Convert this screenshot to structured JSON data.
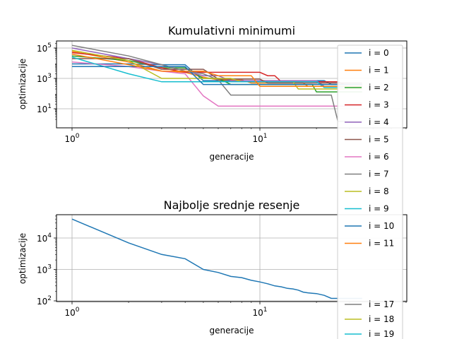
{
  "chart_data": [
    {
      "type": "line",
      "title": "Kumulativni minimumi",
      "xlabel": "generacije",
      "ylabel": "optimizacije",
      "xscale": "log",
      "yscale": "log",
      "grid": true,
      "legend_position": "right",
      "x": [
        1,
        2,
        3,
        4,
        5,
        6,
        7,
        8,
        9,
        10,
        11,
        12,
        13,
        14,
        15,
        16,
        17,
        18,
        19,
        20,
        22,
        24,
        26,
        28,
        30,
        32,
        35
      ],
      "x_ticks": [
        "10^0",
        "10^1"
      ],
      "y_ticks": [
        "10^1",
        "10^3",
        "10^5"
      ],
      "series": [
        {
          "name": "i = 0",
          "color": "#1f77b4",
          "values": [
            9000,
            9000,
            8000,
            8000,
            700,
            700,
            700,
            700,
            700,
            700,
            700,
            700,
            700,
            700,
            700,
            700,
            700,
            700,
            700,
            700,
            700,
            400,
            400,
            400,
            400,
            400,
            400
          ]
        },
        {
          "name": "i = 1",
          "color": "#ff7f0e",
          "values": [
            60000,
            12000,
            3000,
            2500,
            1200,
            800,
            800,
            800,
            500,
            500,
            500,
            500,
            500,
            500,
            500,
            500,
            500,
            300,
            300,
            300,
            300,
            300,
            300,
            300,
            300,
            300,
            300
          ]
        },
        {
          "name": "i = 2",
          "color": "#2ca02c",
          "values": [
            30000,
            15000,
            5000,
            5000,
            1000,
            1000,
            400,
            400,
            400,
            400,
            400,
            400,
            400,
            400,
            400,
            400,
            400,
            400,
            400,
            130,
            130,
            130,
            130,
            130,
            130,
            130,
            130
          ]
        },
        {
          "name": "i = 3",
          "color": "#d62728",
          "values": [
            50000,
            20000,
            5000,
            2500,
            2500,
            2500,
            2500,
            2500,
            2500,
            2500,
            1500,
            1500,
            600,
            600,
            600,
            600,
            600,
            600,
            600,
            600,
            600,
            600,
            600,
            400,
            400,
            400,
            400
          ]
        },
        {
          "name": "i = 4",
          "color": "#9467bd",
          "values": [
            100000,
            20000,
            8000,
            3000,
            1500,
            1500,
            700,
            700,
            700,
            700,
            700,
            700,
            700,
            700,
            700,
            700,
            700,
            700,
            700,
            700,
            300,
            300,
            300,
            300,
            300,
            300,
            300
          ]
        },
        {
          "name": "i = 5",
          "color": "#8c564b",
          "values": [
            20000,
            20000,
            4000,
            4000,
            4000,
            900,
            900,
            900,
            900,
            900,
            500,
            500,
            500,
            500,
            500,
            500,
            500,
            500,
            500,
            500,
            500,
            500,
            500,
            500,
            500,
            500,
            500
          ]
        },
        {
          "name": "i = 6",
          "color": "#e377c2",
          "values": [
            12000,
            6000,
            3000,
            2000,
            70,
            15,
            15,
            15,
            15,
            15,
            15,
            15,
            15,
            15,
            15,
            15,
            15,
            15,
            15,
            15,
            15,
            15,
            15,
            15,
            15,
            15,
            15
          ]
        },
        {
          "name": "i = 7",
          "color": "#7f7f7f",
          "values": [
            150000,
            30000,
            8000,
            3000,
            2000,
            800,
            80,
            80,
            80,
            80,
            80,
            80,
            80,
            80,
            80,
            80,
            80,
            80,
            80,
            80,
            80,
            80,
            1,
            1,
            1,
            1,
            1
          ]
        },
        {
          "name": "i = 8",
          "color": "#bcbd22",
          "values": [
            70000,
            15000,
            1000,
            1000,
            1000,
            1000,
            1000,
            600,
            600,
            600,
            600,
            600,
            600,
            600,
            600,
            200,
            200,
            200,
            200,
            200,
            200,
            200,
            200,
            200,
            200,
            200,
            200
          ]
        },
        {
          "name": "i = 9",
          "color": "#17becf",
          "values": [
            25000,
            2000,
            600,
            600,
            600,
            600,
            600,
            600,
            600,
            600,
            600,
            600,
            600,
            600,
            600,
            600,
            600,
            600,
            600,
            600,
            250,
            250,
            250,
            250,
            250,
            250,
            250
          ]
        },
        {
          "name": "i = 10",
          "color": "#1f77b4",
          "values": [
            6000,
            6000,
            6000,
            6000,
            400,
            400,
            400,
            400,
            400,
            400,
            400,
            400,
            400,
            400,
            400,
            400,
            400,
            400,
            400,
            400,
            400,
            400,
            400,
            400,
            400,
            400,
            400
          ]
        },
        {
          "name": "i = 11",
          "color": "#ff7f0e",
          "values": [
            40000,
            8000,
            3000,
            3000,
            3000,
            1500,
            1500,
            1500,
            1500,
            300,
            300,
            300,
            300,
            300,
            300,
            300,
            300,
            300,
            300,
            300,
            300,
            300,
            300,
            300,
            300,
            300,
            300
          ]
        }
      ]
    },
    {
      "type": "line",
      "title": "Najbolje srednje resenje",
      "xlabel": "generacije",
      "ylabel": "optimizacije",
      "xscale": "log",
      "yscale": "log",
      "grid": true,
      "legend_position": "right",
      "x_ticks": [
        "10^0",
        "10^1"
      ],
      "y_ticks": [
        "10^2",
        "10^3",
        "10^4"
      ],
      "series": [
        {
          "color": "#1f77b4",
          "x": [
            1,
            2,
            3,
            4,
            5,
            6,
            7,
            8,
            9,
            10,
            11,
            12,
            13,
            14,
            15,
            16,
            17,
            18,
            19,
            20,
            22,
            24,
            26,
            28,
            30,
            35
          ],
          "values": [
            40000,
            7000,
            3000,
            2200,
            1000,
            800,
            600,
            550,
            450,
            400,
            350,
            300,
            280,
            250,
            240,
            220,
            190,
            180,
            175,
            170,
            150,
            120,
            120,
            120,
            120,
            120
          ]
        }
      ],
      "legend_visible": [
        "i = 17",
        "i = 18",
        "i = 19"
      ],
      "legend_visible_colors": [
        "#7f7f7f",
        "#bcbd22",
        "#17becf"
      ]
    }
  ]
}
